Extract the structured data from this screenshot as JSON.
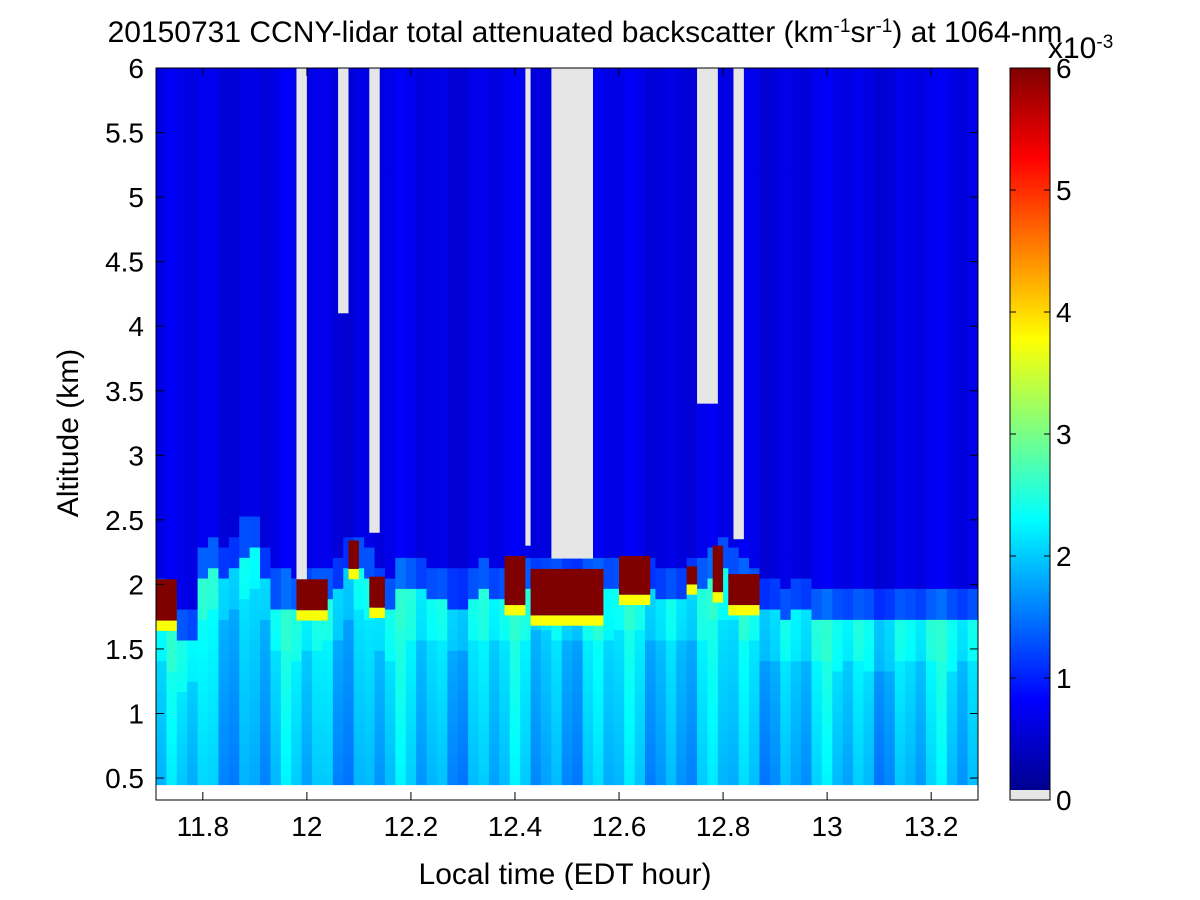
{
  "chart_data": {
    "type": "heatmap",
    "title": {
      "prefix": "20150731 CCNY-lidar total attenuated backscatter (km",
      "sup1": "-1",
      "mid": "sr",
      "sup2": "-1",
      "suffix": ") at 1064-nm"
    },
    "xlabel": "Local time (EDT hour)",
    "ylabel": "Altitude (km)",
    "xlim": [
      11.71,
      13.29
    ],
    "ylim": [
      0.33,
      6.0
    ],
    "x_ticks": [
      11.8,
      12,
      12.2,
      12.4,
      12.6,
      12.8,
      13,
      13.2
    ],
    "x_tick_labels": [
      "11.8",
      "12",
      "12.2",
      "12.4",
      "12.6",
      "12.8",
      "13",
      "13.2"
    ],
    "y_ticks": [
      0.5,
      1,
      1.5,
      2,
      2.5,
      3,
      3.5,
      4,
      4.5,
      5,
      5.5,
      6
    ],
    "y_tick_labels": [
      "0.5",
      "1",
      "1.5",
      "2",
      "2.5",
      "3",
      "3.5",
      "4",
      "4.5",
      "5",
      "5.5",
      "6"
    ],
    "data_min_altitude": 0.45,
    "colorbar": {
      "range": [
        0,
        0.006
      ],
      "ticks": [
        0,
        1,
        2,
        3,
        4,
        5,
        6
      ],
      "tick_labels": [
        "0",
        "1",
        "2",
        "3",
        "4",
        "5",
        "6"
      ],
      "multiplier_base": "x10",
      "multiplier_exp": "-3",
      "colormap": "jet",
      "no_data_color": "#e6e6e6"
    },
    "time_samples": [
      11.72,
      11.74,
      11.76,
      11.78,
      11.8,
      11.82,
      11.84,
      11.86,
      11.88,
      11.9,
      11.92,
      11.94,
      11.96,
      11.98,
      12.0,
      12.02,
      12.04,
      12.06,
      12.08,
      12.1,
      12.12,
      12.14,
      12.16,
      12.18,
      12.2,
      12.22,
      12.24,
      12.26,
      12.28,
      12.3,
      12.32,
      12.34,
      12.36,
      12.38,
      12.4,
      12.42,
      12.44,
      12.46,
      12.48,
      12.5,
      12.52,
      12.54,
      12.56,
      12.58,
      12.6,
      12.62,
      12.64,
      12.66,
      12.68,
      12.7,
      12.72,
      12.74,
      12.76,
      12.78,
      12.8,
      12.82,
      12.84,
      12.86,
      12.88,
      12.9,
      12.92,
      12.94,
      12.96,
      12.98,
      13.0,
      13.02,
      13.04,
      13.06,
      13.08,
      13.1,
      13.12,
      13.14,
      13.16,
      13.18,
      13.2,
      13.22,
      13.24,
      13.26,
      13.28
    ],
    "altitude_samples": [
      0.5,
      1.0,
      1.5,
      1.8,
      2.0,
      2.2,
      2.5,
      3.0,
      3.5,
      4.0,
      4.5,
      5.0,
      5.5,
      6.0
    ],
    "mixing_layer_top_km": [
      1.95,
      1.8,
      1.7,
      1.75,
      2.2,
      2.3,
      2.2,
      2.3,
      2.4,
      2.45,
      2.2,
      2.0,
      2.0,
      1.95,
      2.0,
      2.0,
      2.05,
      2.1,
      2.25,
      2.3,
      2.2,
      2.0,
      1.95,
      2.15,
      2.1,
      2.1,
      2.05,
      2.05,
      2.0,
      2.0,
      2.05,
      2.1,
      2.05,
      2.05,
      2.1,
      2.1,
      2.15,
      2.15,
      2.1,
      2.1,
      2.1,
      2.1,
      2.1,
      2.1,
      2.15,
      2.15,
      2.15,
      2.1,
      2.05,
      2.05,
      2.05,
      2.1,
      2.1,
      2.2,
      2.25,
      2.2,
      2.1,
      2.05,
      1.95,
      1.95,
      1.9,
      1.95,
      1.95,
      1.9,
      1.9,
      1.85,
      1.9,
      1.9,
      1.85,
      1.85,
      1.85,
      1.9,
      1.9,
      1.9,
      1.9,
      1.9,
      1.85,
      1.9,
      1.9
    ],
    "cloud_layers": [
      {
        "time_start": 11.71,
        "time_end": 11.75,
        "alt_bottom": 1.72,
        "alt_top": 2.04,
        "value": 0.006
      },
      {
        "time_start": 11.98,
        "time_end": 12.04,
        "alt_bottom": 1.8,
        "alt_top": 2.04,
        "value": 0.006
      },
      {
        "time_start": 12.08,
        "time_end": 12.1,
        "alt_bottom": 2.12,
        "alt_top": 2.34,
        "value": 0.006
      },
      {
        "time_start": 12.12,
        "time_end": 12.15,
        "alt_bottom": 1.82,
        "alt_top": 2.06,
        "value": 0.006
      },
      {
        "time_start": 12.38,
        "time_end": 12.42,
        "alt_bottom": 1.84,
        "alt_top": 2.22,
        "value": 0.006
      },
      {
        "time_start": 12.43,
        "time_end": 12.57,
        "alt_bottom": 1.76,
        "alt_top": 2.12,
        "value": 0.006
      },
      {
        "time_start": 12.6,
        "time_end": 12.66,
        "alt_bottom": 1.92,
        "alt_top": 2.22,
        "value": 0.006
      },
      {
        "time_start": 12.73,
        "time_end": 12.75,
        "alt_bottom": 2.0,
        "alt_top": 2.14,
        "value": 0.006
      },
      {
        "time_start": 12.78,
        "time_end": 12.8,
        "alt_bottom": 1.94,
        "alt_top": 2.3,
        "value": 0.006
      },
      {
        "time_start": 12.81,
        "time_end": 12.87,
        "alt_bottom": 1.84,
        "alt_top": 2.08,
        "value": 0.006
      }
    ],
    "no_data_regions": [
      {
        "time_start": 11.98,
        "time_end": 12.0,
        "alt_bottom": 2.04,
        "alt_top": 6.0
      },
      {
        "time_start": 12.06,
        "time_end": 12.08,
        "alt_bottom": 4.1,
        "alt_top": 6.0
      },
      {
        "time_start": 12.12,
        "time_end": 12.14,
        "alt_bottom": 2.4,
        "alt_top": 6.0
      },
      {
        "time_start": 12.42,
        "time_end": 12.43,
        "alt_bottom": 2.3,
        "alt_top": 6.0
      },
      {
        "time_start": 12.47,
        "time_end": 12.55,
        "alt_bottom": 2.2,
        "alt_top": 6.0
      },
      {
        "time_start": 12.75,
        "time_end": 12.79,
        "alt_bottom": 3.4,
        "alt_top": 6.0
      },
      {
        "time_start": 12.82,
        "time_end": 12.84,
        "alt_bottom": 2.35,
        "alt_top": 6.0
      }
    ]
  }
}
